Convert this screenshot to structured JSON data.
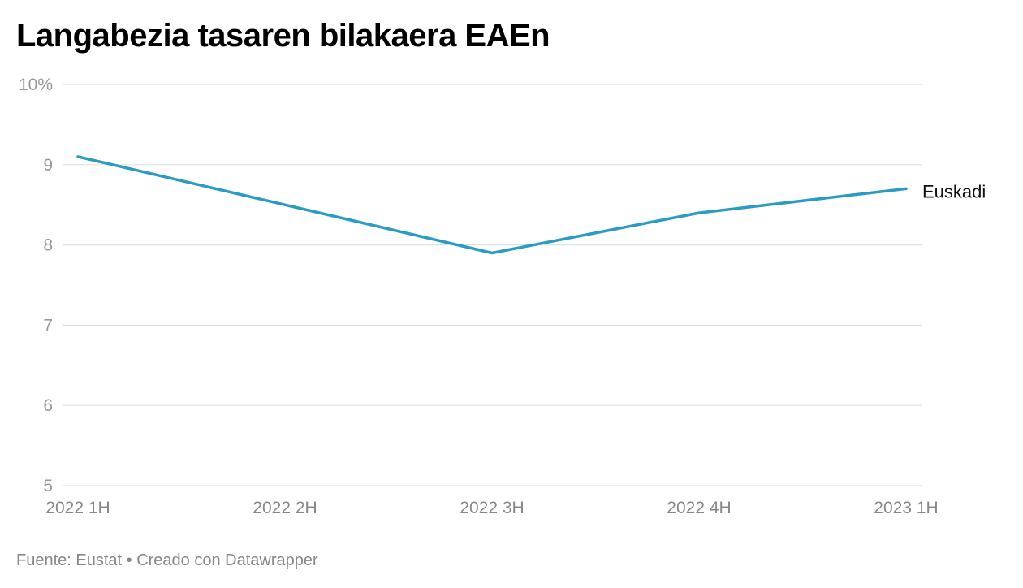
{
  "chart_data": {
    "type": "line",
    "title": "Langabezia tasaren bilakaera EAEn",
    "categories": [
      "2022 1H",
      "2022 2H",
      "2022 3H",
      "2022 4H",
      "2023 1H"
    ],
    "series": [
      {
        "name": "Euskadi",
        "values": [
          9.1,
          8.5,
          7.9,
          8.4,
          8.7
        ],
        "color": "#2a9cc4"
      }
    ],
    "ylim": [
      5,
      10
    ],
    "yticks": [
      5,
      6,
      7,
      8,
      9,
      10
    ],
    "ytick_labels": [
      "5",
      "6",
      "7",
      "8",
      "9",
      "10%"
    ],
    "grid": true,
    "xlabel": "",
    "ylabel": ""
  },
  "footer": {
    "text": "Fuente: Eustat • Creado con Datawrapper"
  },
  "colors": {
    "line": "#2a9cc4",
    "grid": "#e0e0e0",
    "tick_text": "#999999",
    "x_label_text": "#888888",
    "series_label_text": "#111111"
  }
}
